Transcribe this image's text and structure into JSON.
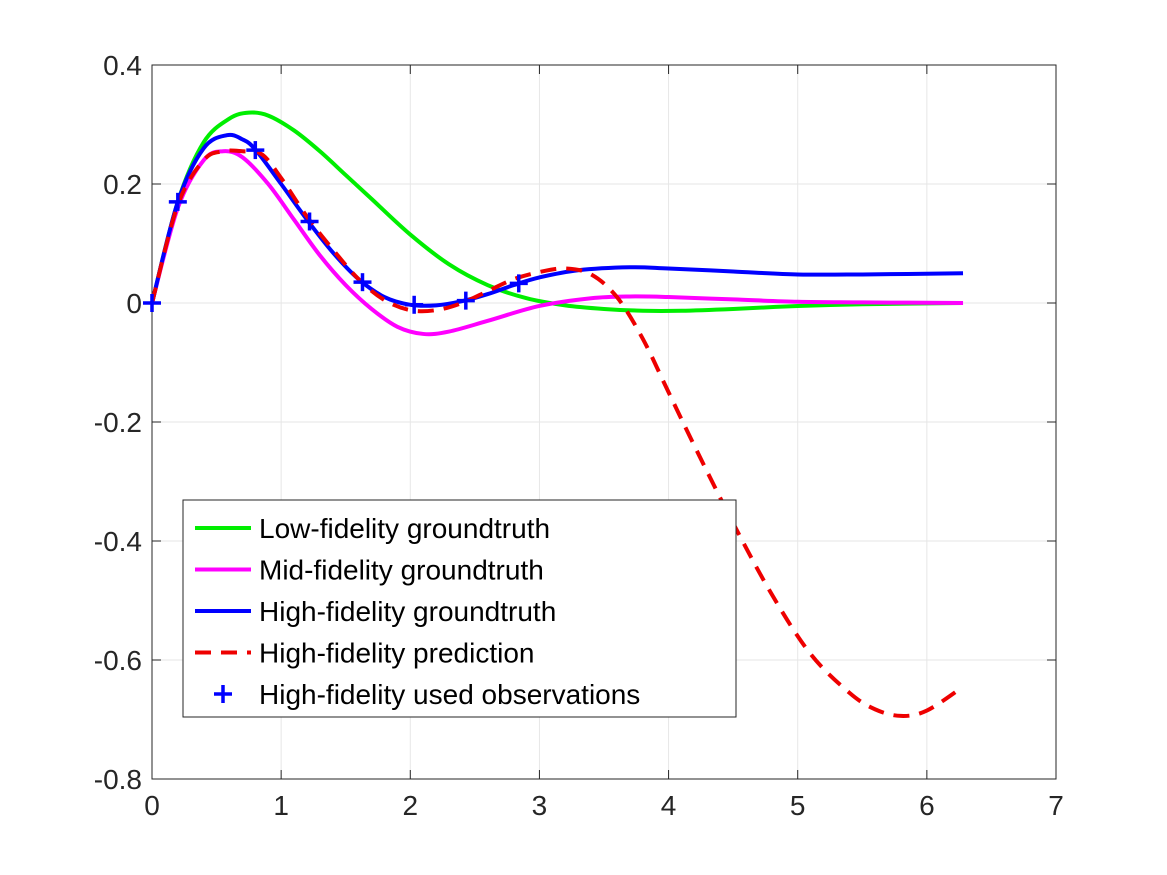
{
  "chart_data": {
    "type": "line",
    "title": "",
    "xlabel": "",
    "ylabel": "",
    "xlim": [
      0,
      7
    ],
    "ylim": [
      -0.8,
      0.4
    ],
    "xticks": [
      0,
      1,
      2,
      3,
      4,
      5,
      6,
      7
    ],
    "yticks": [
      -0.8,
      -0.6,
      -0.4,
      -0.2,
      0,
      0.2,
      0.4
    ],
    "xtick_labels": [
      "0",
      "1",
      "2",
      "3",
      "4",
      "5",
      "6",
      "7"
    ],
    "ytick_labels": [
      "-0.8",
      "-0.6",
      "-0.4",
      "-0.2",
      "0",
      "0.2",
      "0.4"
    ],
    "grid": true,
    "legend_position": "bottom-left",
    "series": [
      {
        "name": "Low-fidelity groundtruth",
        "color": "#00ee00",
        "style": "solid",
        "x": [
          0,
          0.2,
          0.4,
          0.6,
          0.75,
          0.9,
          1.1,
          1.3,
          1.5,
          1.7,
          2.0,
          2.3,
          2.6,
          2.9,
          3.2,
          3.5,
          3.8,
          4.1,
          4.5,
          5.0,
          5.5,
          6.28
        ],
        "y": [
          0,
          0.17,
          0.27,
          0.31,
          0.32,
          0.315,
          0.29,
          0.255,
          0.215,
          0.175,
          0.115,
          0.065,
          0.03,
          0.008,
          -0.004,
          -0.01,
          -0.013,
          -0.013,
          -0.01,
          -0.005,
          -0.002,
          0
        ]
      },
      {
        "name": "Mid-fidelity groundtruth",
        "color": "#ff00ff",
        "style": "solid",
        "x": [
          0,
          0.2,
          0.4,
          0.55,
          0.7,
          0.9,
          1.1,
          1.3,
          1.5,
          1.7,
          1.9,
          2.1,
          2.3,
          2.6,
          3.0,
          3.4,
          3.7,
          4.0,
          4.5,
          5.0,
          5.5,
          6.28
        ],
        "y": [
          0,
          0.16,
          0.24,
          0.255,
          0.245,
          0.2,
          0.14,
          0.08,
          0.03,
          -0.01,
          -0.04,
          -0.052,
          -0.048,
          -0.03,
          -0.005,
          0.008,
          0.011,
          0.01,
          0.006,
          0.002,
          0.001,
          0
        ]
      },
      {
        "name": "High-fidelity groundtruth",
        "color": "#0000ff",
        "style": "solid",
        "x": [
          0,
          0.2,
          0.4,
          0.58,
          0.7,
          0.8,
          1.0,
          1.2,
          1.4,
          1.6,
          1.8,
          2.0,
          2.2,
          2.4,
          2.6,
          2.8,
          3.0,
          3.3,
          3.7,
          4.0,
          4.5,
          5.0,
          5.5,
          6.28
        ],
        "y": [
          0,
          0.17,
          0.26,
          0.282,
          0.275,
          0.258,
          0.2,
          0.14,
          0.085,
          0.04,
          0.01,
          -0.003,
          -0.004,
          0.003,
          0.015,
          0.03,
          0.043,
          0.055,
          0.06,
          0.058,
          0.053,
          0.048,
          0.048,
          0.05
        ]
      },
      {
        "name": "High-fidelity prediction",
        "color": "#ee0000",
        "style": "dashed",
        "x": [
          0,
          0.2,
          0.4,
          0.55,
          0.7,
          0.85,
          1.0,
          1.2,
          1.4,
          1.6,
          1.8,
          2.0,
          2.2,
          2.4,
          2.6,
          2.8,
          3.0,
          3.2,
          3.4,
          3.6,
          3.8,
          4.0,
          4.2,
          4.5,
          4.8,
          5.1,
          5.4,
          5.6,
          5.8,
          6.0,
          6.28
        ],
        "y": [
          0,
          0.165,
          0.24,
          0.255,
          0.255,
          0.25,
          0.21,
          0.145,
          0.09,
          0.04,
          0.005,
          -0.012,
          -0.012,
          0.0,
          0.02,
          0.04,
          0.052,
          0.058,
          0.048,
          0.01,
          -0.06,
          -0.15,
          -0.24,
          -0.37,
          -0.49,
          -0.59,
          -0.655,
          -0.683,
          -0.694,
          -0.685,
          -0.645
        ]
      }
    ],
    "observations": {
      "name": "High-fidelity used observations",
      "color": "#0000ff",
      "marker": "+",
      "x": [
        0,
        0.2,
        0.8,
        1.22,
        1.63,
        2.03,
        2.43,
        2.84
      ],
      "y": [
        0,
        0.17,
        0.257,
        0.137,
        0.035,
        -0.003,
        0.004,
        0.033
      ]
    }
  }
}
